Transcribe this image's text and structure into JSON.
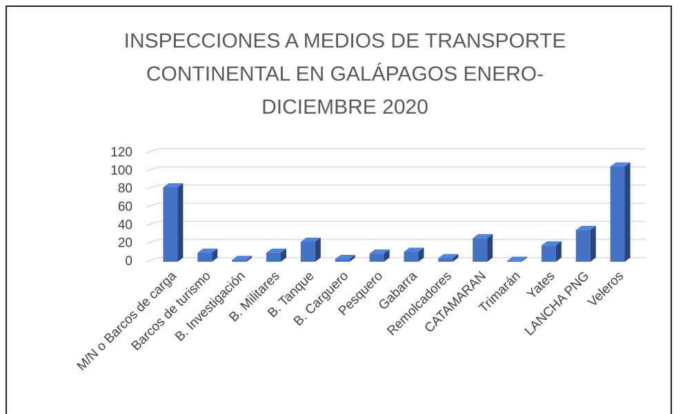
{
  "chart_data": {
    "type": "bar",
    "title": "INSPECCIONES A MEDIOS DE TRANSPORTE CONTINENTAL EN GALÁPAGOS ENERO-DICIEMBRE 2020",
    "categories": [
      "M/N o Barcos de carga",
      "Barcos de turismo",
      "B. Investigación",
      "B. Militares",
      "B. Tanque",
      "B. Carguero",
      "Pesquero",
      "Gabarra",
      "Remolcadores",
      "CATAMARAN",
      "Trimarán",
      "Yates",
      "LANCHA PNG",
      "Veleros"
    ],
    "values": [
      82,
      10,
      2,
      10,
      22,
      3,
      9,
      11,
      4,
      26,
      1,
      18,
      35,
      105
    ],
    "color": "#4472c4",
    "ylim": [
      0,
      120
    ],
    "yticks": [
      0,
      20,
      40,
      60,
      80,
      100,
      120
    ],
    "grid": true
  }
}
